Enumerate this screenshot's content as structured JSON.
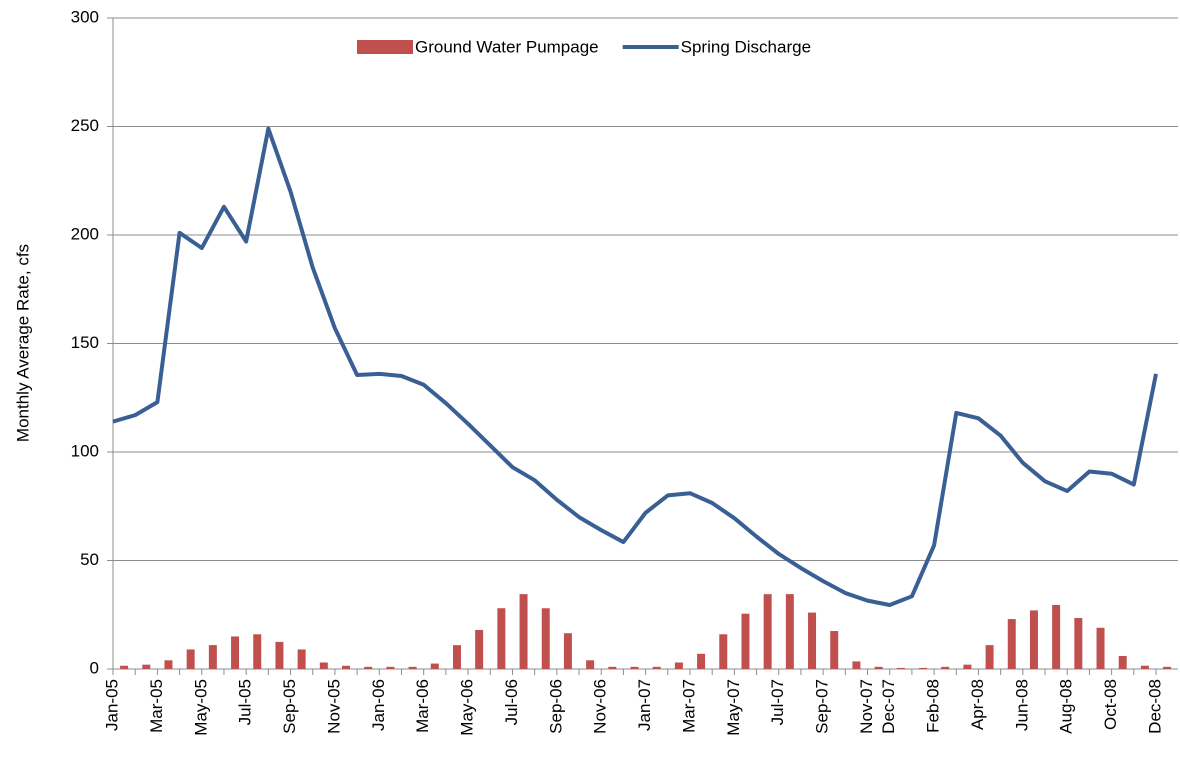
{
  "chart_data": {
    "type": "bar-line",
    "y_label": "Monthly Average Rate, cfs",
    "categories": [
      "Jan-05",
      null,
      "Mar-05",
      null,
      "May-05",
      null,
      "Jul-05",
      null,
      "Sep-05",
      null,
      "Nov-05",
      null,
      "Jan-06",
      null,
      "Mar-06",
      null,
      "May-06",
      null,
      "Jul-06",
      null,
      "Sep-06",
      null,
      "Nov-06",
      null,
      "Jan-07",
      null,
      "Mar-07",
      null,
      "May-07",
      null,
      "Jul-07",
      null,
      "Sep-07",
      null,
      "Nov-07",
      "Dec-07",
      null,
      "Feb-08",
      null,
      "Apr-08",
      null,
      "Jun-08",
      null,
      "Aug-08",
      null,
      "Oct-08",
      null,
      "Dec-08"
    ],
    "series": [
      {
        "name": "Ground Water Pumpage",
        "type": "bar",
        "color": "#c0504d",
        "values": [
          1.5,
          2,
          4,
          9,
          11,
          15,
          16,
          12.5,
          9,
          3,
          1.5,
          1,
          1,
          1,
          2.5,
          11,
          18,
          28,
          34.5,
          28,
          16.5,
          4,
          1,
          1,
          1,
          3,
          7,
          16,
          25.5,
          34.5,
          34.5,
          26,
          17.5,
          3.5,
          1,
          0.5,
          0.5,
          1,
          2,
          11,
          23,
          27,
          29.5,
          23.5,
          19,
          6,
          1.5,
          1
        ]
      },
      {
        "name": "Spring Discharge",
        "type": "line",
        "color": "#3a5f94",
        "values": [
          114,
          117,
          123,
          201,
          194,
          213,
          197,
          249,
          220,
          185,
          157,
          135.5,
          136,
          135,
          131,
          122.5,
          113,
          103,
          93,
          87,
          78,
          70,
          64,
          58.5,
          72,
          80,
          81,
          76.5,
          69.5,
          61,
          53,
          46.5,
          40.5,
          35,
          31.5,
          29.5,
          33.5,
          57,
          118,
          115.5,
          107.5,
          95,
          86.5,
          82,
          91,
          90,
          85,
          136
        ]
      }
    ],
    "ylim": [
      0,
      300
    ],
    "yticks": [
      0,
      50,
      100,
      150,
      200,
      250,
      300
    ],
    "grid": true
  }
}
